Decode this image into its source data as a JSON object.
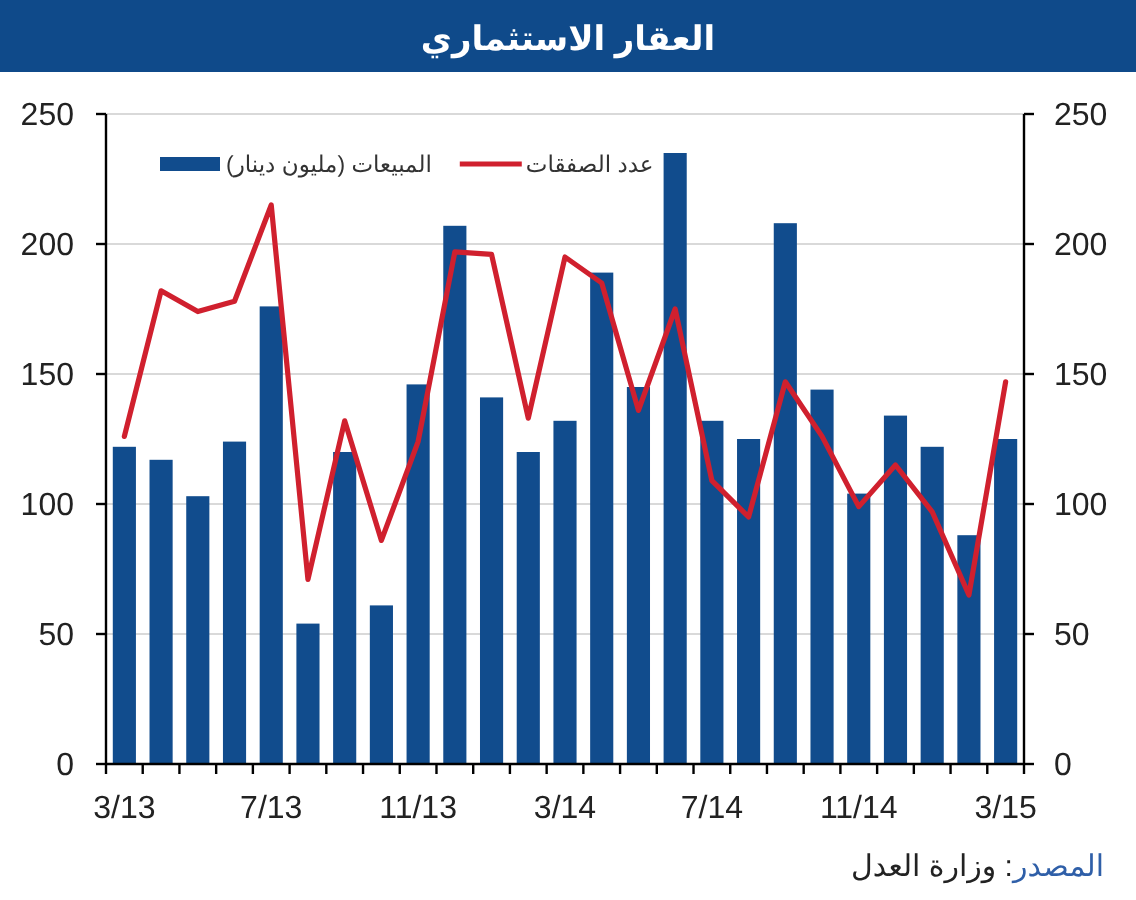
{
  "chart_data": {
    "type": "bar",
    "title": "العقار الاستثماري",
    "categories": [
      "3/13",
      null,
      null,
      null,
      "7/13",
      null,
      null,
      null,
      "11/13",
      null,
      null,
      null,
      "3/14",
      null,
      null,
      null,
      "7/14",
      null,
      null,
      null,
      "11/14",
      null,
      null,
      null,
      "3/15"
    ],
    "series": [
      {
        "name": "المبيعات (مليون دينار)",
        "color": "#114c8d",
        "values": [
          122,
          117,
          103,
          124,
          176,
          54,
          120,
          61,
          146,
          207,
          141,
          120,
          132,
          189,
          145,
          235,
          132,
          125,
          208,
          144,
          104,
          134,
          122,
          88,
          125
        ]
      },
      {
        "name": "عدد الصفقات",
        "type": "line",
        "axis": "y2",
        "color": "#d0202e",
        "values": [
          126,
          182,
          174,
          178,
          215,
          71,
          132,
          86,
          124,
          197,
          196,
          133,
          195,
          185,
          136,
          175,
          109,
          95,
          147,
          126,
          99,
          115,
          97,
          65,
          147
        ]
      }
    ],
    "ylim": [
      0,
      250
    ],
    "yticks": [
      0,
      50,
      100,
      150,
      200,
      250
    ],
    "y2lim": [
      0,
      250
    ],
    "y2ticks": [
      0,
      50,
      100,
      150,
      200,
      250
    ],
    "grid": "y",
    "legend": "top left",
    "annotations": [
      "المصدر: وزارة العدل"
    ]
  }
}
